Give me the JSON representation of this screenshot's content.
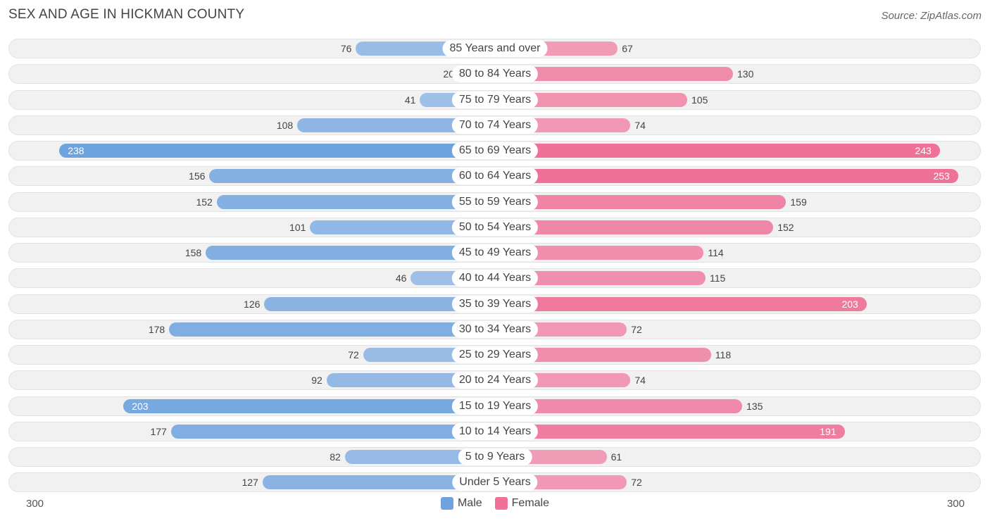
{
  "title": "SEX AND AGE IN HICKMAN COUNTY",
  "source": "Source: ZipAtlas.com",
  "axis": {
    "left_label": "300",
    "right_label": "300"
  },
  "legend": [
    {
      "label": "Male",
      "color": "#6fa3df"
    },
    {
      "label": "Female",
      "color": "#f07198"
    }
  ],
  "chart_data": {
    "type": "bar",
    "orientation": "horizontal-diverging",
    "title": "SEX AND AGE IN HICKMAN COUNTY",
    "xlim": [
      -300,
      300
    ],
    "categories": [
      "85 Years and over",
      "80 to 84 Years",
      "75 to 79 Years",
      "70 to 74 Years",
      "65 to 69 Years",
      "60 to 64 Years",
      "55 to 59 Years",
      "50 to 54 Years",
      "45 to 49 Years",
      "40 to 44 Years",
      "35 to 39 Years",
      "30 to 34 Years",
      "25 to 29 Years",
      "20 to 24 Years",
      "15 to 19 Years",
      "10 to 14 Years",
      "5 to 9 Years",
      "Under 5 Years"
    ],
    "series": [
      {
        "name": "Male",
        "color": "#6fa3df",
        "values": [
          76,
          20,
          41,
          108,
          238,
          156,
          152,
          101,
          158,
          46,
          126,
          178,
          72,
          92,
          203,
          177,
          82,
          127
        ]
      },
      {
        "name": "Female",
        "color": "#f07198",
        "values": [
          67,
          130,
          105,
          74,
          243,
          253,
          159,
          152,
          114,
          115,
          203,
          72,
          118,
          74,
          135,
          191,
          61,
          72
        ]
      }
    ]
  }
}
